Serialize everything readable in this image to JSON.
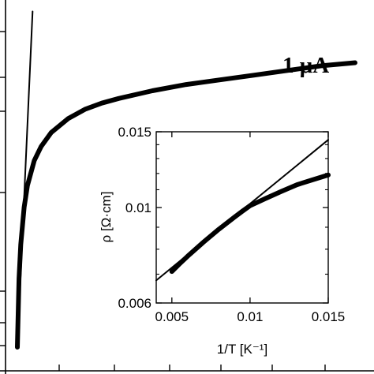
{
  "chart_data": [
    {
      "type": "line",
      "title": "",
      "xlabel": "",
      "ylabel": "",
      "annotation": "1 μA",
      "series": [
        {
          "name": "1 μA",
          "x": [
            0.0,
            0.05,
            0.1,
            0.2,
            0.3,
            0.5,
            0.7,
            1.0,
            1.5,
            2.0,
            2.5,
            3.0,
            4.0,
            5.0,
            6.0,
            7.0,
            8.0,
            9.0,
            10.0
          ],
          "y": [
            0.0,
            0.22,
            0.33,
            0.45,
            0.52,
            0.6,
            0.645,
            0.69,
            0.735,
            0.765,
            0.785,
            0.8,
            0.825,
            0.845,
            0.86,
            0.875,
            0.89,
            0.905,
            0.915
          ]
        },
        {
          "x": [
            0.0,
            0.45
          ],
          "y": [
            0.0,
            1.08
          ]
        }
      ]
    },
    {
      "type": "line",
      "title": "",
      "xlabel": "1/T [K⁻¹]",
      "ylabel": "ρ [Ω·cm]",
      "ylog": true,
      "xlim": [
        0.004,
        0.015
      ],
      "ylim": [
        0.006,
        0.015
      ],
      "xticks": [
        "0.005",
        "0.01",
        "0.015"
      ],
      "yticks": [
        "0.006",
        "0.01",
        "0.015"
      ],
      "series": [
        {
          "x": [
            0.005,
            0.0055,
            0.006,
            0.007,
            0.008,
            0.009,
            0.0095,
            0.01,
            0.011,
            0.012,
            0.013,
            0.014,
            0.015
          ],
          "y": [
            0.0071,
            0.0074,
            0.0077,
            0.0083,
            0.0089,
            0.0095,
            0.0098,
            0.0101,
            0.0105,
            0.0109,
            0.0113,
            0.0116,
            0.0119
          ]
        },
        {
          "x": [
            0.004,
            0.015
          ],
          "y": [
            0.00677,
            0.01437
          ]
        }
      ]
    }
  ]
}
